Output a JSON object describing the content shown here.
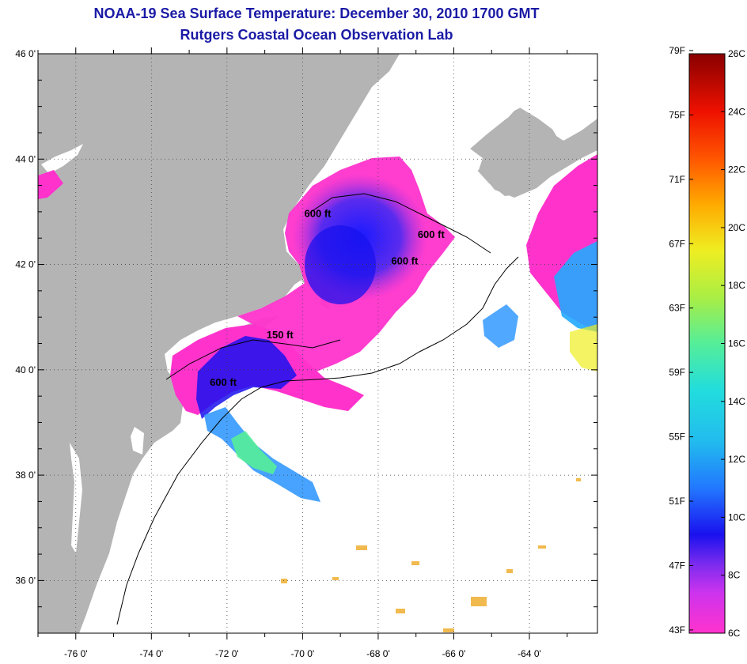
{
  "title": "NOAA-19 Sea Surface Temperature:  December 30, 2010 1700 GMT",
  "subtitle": "Rutgers Coastal Ocean Observation Lab",
  "map": {
    "lat_labels": [
      "46 0'",
      "44 0'",
      "42 0'",
      "40 0'",
      "38 0'",
      "36 0'"
    ],
    "lat_values": [
      46,
      44,
      42,
      40,
      38,
      36
    ],
    "lon_labels": [
      "-76 0'",
      "-74 0'",
      "-72 0'",
      "-70 0'",
      "-68 0'",
      "-66 0'",
      "-64 0'"
    ],
    "lon_values": [
      -76,
      -74,
      -72,
      -70,
      -68,
      -66,
      -64
    ],
    "lon_range": [
      -77,
      -62.2
    ],
    "lat_range": [
      35,
      46
    ],
    "gridlines": true,
    "land_color": "#b4b4b4",
    "no_data_color": "#ffffff",
    "contour_labels": [
      {
        "text": "600 ft",
        "lon": -69.6,
        "lat": 42.9
      },
      {
        "text": "600 ft",
        "lon": -66.6,
        "lat": 42.5
      },
      {
        "text": "600 ft",
        "lon": -67.3,
        "lat": 42.0
      },
      {
        "text": "150 ft",
        "lon": -70.6,
        "lat": 40.6
      },
      {
        "text": "600 ft",
        "lon": -72.1,
        "lat": 39.7
      }
    ]
  },
  "color_scale": {
    "fahrenheit_labels": [
      "79F",
      "75F",
      "71F",
      "67F",
      "63F",
      "59F",
      "55F",
      "51F",
      "47F",
      "43F"
    ],
    "celsius_labels": [
      "26C",
      "24C",
      "22C",
      "20C",
      "18C",
      "16C",
      "14C",
      "12C",
      "10C",
      "8C",
      "6C"
    ],
    "min_c": 6,
    "max_c": 26,
    "colors": [
      "#ff33cc",
      "#9933ff",
      "#1111ee",
      "#3399ff",
      "#22dddd",
      "#66ee99",
      "#eeee22",
      "#ffaa00",
      "#ff4400",
      "#dd0000",
      "#880000"
    ]
  }
}
